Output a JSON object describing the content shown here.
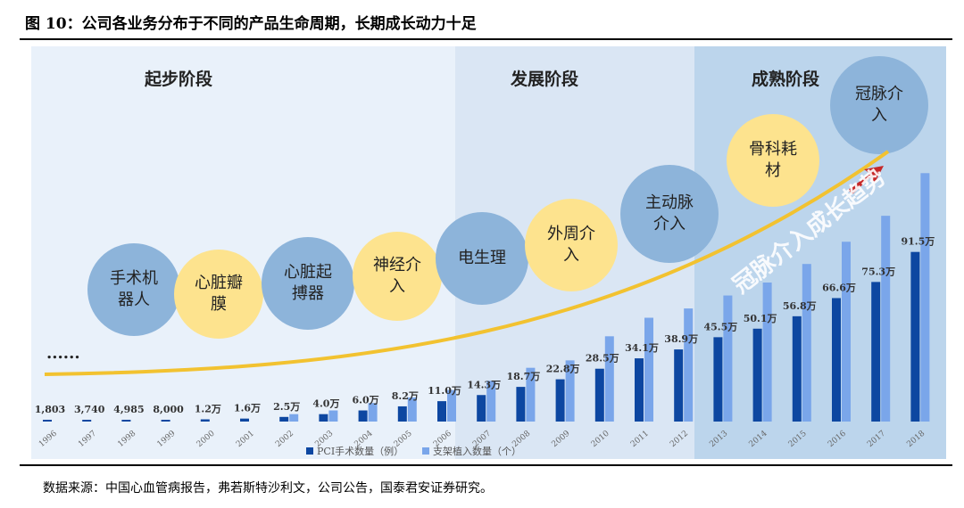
{
  "title": "图 10：公司各业务分布于不同的产品生命周期，长期成长动力十足",
  "source": "数据来源：中国心血管病报告，弗若斯特沙利文，公司公告，国泰君安证券研究。",
  "colors": {
    "pci": "#0d47a1",
    "stent": "#7aa6ea",
    "blue_circle": "#8db4da",
    "yellow_circle": "#fde38e",
    "curve": "#f2c230",
    "arrow": "#c62828"
  },
  "stages": [
    "起步阶段",
    "发展阶段",
    "成熟阶段"
  ],
  "ellipsis": "......",
  "trend_label": "冠脉介入成长趋势",
  "businesses": [
    {
      "label": "手术机器人",
      "color": "blue"
    },
    {
      "label": "心脏瓣膜",
      "color": "yellow"
    },
    {
      "label": "心脏起搏器",
      "color": "blue"
    },
    {
      "label": "神经介入",
      "color": "yellow"
    },
    {
      "label": "电生理",
      "color": "blue"
    },
    {
      "label": "外周介入",
      "color": "yellow"
    },
    {
      "label": "主动脉介入",
      "color": "blue"
    },
    {
      "label": "骨科耗材",
      "color": "yellow"
    },
    {
      "label": "冠脉介入",
      "color": "blue"
    }
  ],
  "chart_data": {
    "type": "bar",
    "categories": [
      "1996",
      "1997",
      "1998",
      "1999",
      "2000",
      "2001",
      "2002",
      "2003",
      "2004",
      "2005",
      "2006",
      "2007",
      "2008",
      "2009",
      "2010",
      "2011",
      "2012",
      "2013",
      "2014",
      "2015",
      "2016",
      "2017",
      "2018"
    ],
    "series": [
      {
        "name": "PCI手术数量（例）",
        "values_wan": [
          0.1803,
          0.374,
          0.4985,
          0.8,
          1.2,
          1.6,
          2.5,
          4.0,
          6.0,
          8.2,
          11.0,
          14.3,
          18.7,
          22.8,
          28.5,
          34.1,
          38.9,
          45.5,
          50.1,
          56.8,
          66.6,
          75.3,
          91.5
        ],
        "labels": [
          "1,803",
          "3,740",
          "4,985",
          "8,000",
          "1.2万",
          "1.6万",
          "2.5万",
          "4.0万",
          "6.0万",
          "8.2万",
          "11.0万",
          "14.3万",
          "18.7万",
          "22.8万",
          "28.5万",
          "34.1万",
          "38.9万",
          "45.5万",
          "50.1万",
          "56.8万",
          "66.6万",
          "75.3万",
          "91.5万"
        ]
      },
      {
        "name": "支架植入数量（个）",
        "values_wan": [
          0,
          0,
          0,
          0,
          0,
          0,
          4,
          6,
          10,
          13,
          17,
          22,
          29,
          33,
          46,
          56,
          61,
          68,
          75,
          85,
          97,
          111,
          134
        ]
      }
    ],
    "legend_position": "bottom",
    "grid": false
  }
}
